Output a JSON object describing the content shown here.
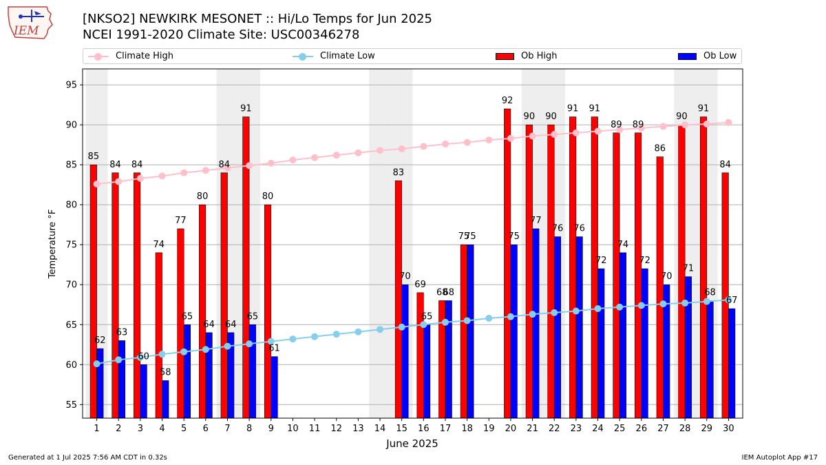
{
  "logo": {
    "text": "IEM"
  },
  "chart_data": {
    "type": "bar",
    "title": "[NKSO2] NEWKIRK MESONET :: Hi/Lo Temps for Jun 2025",
    "subtitle": "NCEI 1991-2020 Climate Site: USC00346278",
    "xlabel": "June 2025",
    "ylabel": "Temperature °F",
    "ylim": [
      53.3,
      97
    ],
    "yticks": [
      55,
      60,
      65,
      70,
      75,
      80,
      85,
      90,
      95
    ],
    "categories": [
      "1",
      "2",
      "3",
      "4",
      "5",
      "6",
      "7",
      "8",
      "9",
      "10",
      "11",
      "12",
      "13",
      "14",
      "15",
      "16",
      "17",
      "18",
      "19",
      "20",
      "21",
      "22",
      "23",
      "24",
      "25",
      "26",
      "27",
      "28",
      "29",
      "30"
    ],
    "weekend_shading_days": [
      1,
      7,
      8,
      14,
      15,
      21,
      22,
      28,
      29
    ],
    "grid": "horizontal",
    "legend_position": "top",
    "series": [
      {
        "name": "Climate High",
        "kind": "line",
        "color": "#ffc0cb",
        "values": [
          82.6,
          82.9,
          83.3,
          83.6,
          84.0,
          84.3,
          84.6,
          84.9,
          85.2,
          85.6,
          85.9,
          86.2,
          86.5,
          86.8,
          87.0,
          87.3,
          87.6,
          87.8,
          88.1,
          88.3,
          88.6,
          88.8,
          89.0,
          89.2,
          89.4,
          89.6,
          89.8,
          90.0,
          90.1,
          90.3
        ]
      },
      {
        "name": "Climate Low",
        "kind": "line",
        "color": "#87ceeb",
        "values": [
          60.1,
          60.6,
          60.9,
          61.3,
          61.6,
          61.9,
          62.3,
          62.6,
          62.9,
          63.2,
          63.5,
          63.8,
          64.1,
          64.4,
          64.7,
          65.0,
          65.3,
          65.5,
          65.8,
          66.0,
          66.3,
          66.5,
          66.7,
          67.0,
          67.2,
          67.4,
          67.6,
          67.7,
          67.9,
          68.1
        ]
      },
      {
        "name": "Ob High",
        "kind": "bar",
        "color": "#ff0000",
        "values": [
          85,
          84,
          84,
          74,
          77,
          80,
          84,
          91,
          80,
          null,
          null,
          null,
          null,
          null,
          83,
          69,
          68,
          75,
          null,
          92,
          90,
          90,
          91,
          91,
          89,
          89,
          86,
          90,
          91,
          84
        ]
      },
      {
        "name": "Ob Low",
        "kind": "bar",
        "color": "#0000ff",
        "values": [
          62,
          63,
          60,
          58,
          65,
          64,
          64,
          65,
          61,
          null,
          null,
          null,
          null,
          null,
          70,
          65,
          68,
          75,
          null,
          75,
          77,
          76,
          76,
          72,
          74,
          72,
          70,
          71,
          68,
          67
        ]
      }
    ]
  },
  "footer": {
    "generated": "Generated at 1 Jul 2025 7:56 AM CDT in 0.32s",
    "app": "IEM Autoplot App #17"
  }
}
